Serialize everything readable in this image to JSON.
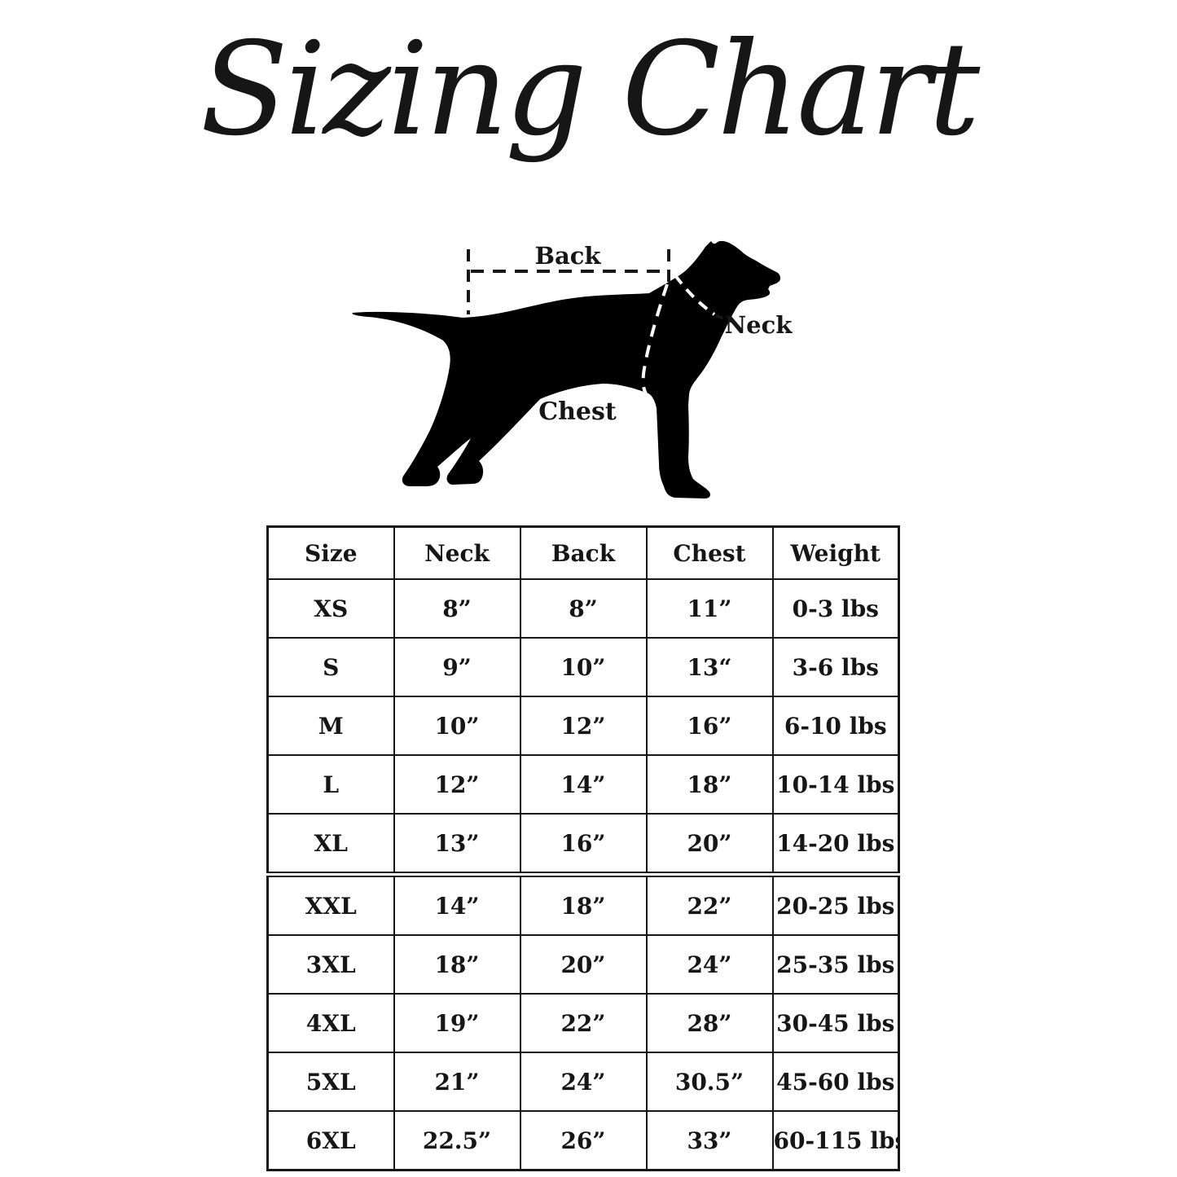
{
  "title": "Sizing Chart",
  "diagram": {
    "labels": {
      "back": "Back",
      "neck": "Neck",
      "chest": "Chest"
    },
    "silhouette_color": "#000000",
    "dash_color": "#161616"
  },
  "table": {
    "headers": [
      "Size",
      "Neck",
      "Back",
      "Chest",
      "Weight"
    ],
    "column_keys": [
      "size",
      "neck",
      "back",
      "chest",
      "weight"
    ],
    "double_border_before_row_index": 5,
    "rows": [
      {
        "size": "XS",
        "neck": "8”",
        "back": "8”",
        "chest": "11”",
        "weight": "0-3 lbs"
      },
      {
        "size": "S",
        "neck": "9”",
        "back": "10”",
        "chest": "13“",
        "weight": "3-6 lbs"
      },
      {
        "size": "M",
        "neck": "10”",
        "back": "12”",
        "chest": "16”",
        "weight": "6-10 lbs"
      },
      {
        "size": "L",
        "neck": "12”",
        "back": "14”",
        "chest": "18”",
        "weight": "10-14 lbs"
      },
      {
        "size": "XL",
        "neck": "13”",
        "back": "16”",
        "chest": "20”",
        "weight": "14-20 lbs"
      },
      {
        "size": "XXL",
        "neck": "14”",
        "back": "18”",
        "chest": "22”",
        "weight": "20-25 lbs"
      },
      {
        "size": "3XL",
        "neck": "18”",
        "back": "20”",
        "chest": "24”",
        "weight": "25-35 lbs"
      },
      {
        "size": "4XL",
        "neck": "19”",
        "back": "22”",
        "chest": "28”",
        "weight": "30-45 lbs"
      },
      {
        "size": "5XL",
        "neck": "21”",
        "back": "24”",
        "chest": "30.5”",
        "weight": "45-60 lbs"
      },
      {
        "size": "6XL",
        "neck": "22.5”",
        "back": "26”",
        "chest": "33”",
        "weight": "60-115 lbs"
      }
    ]
  }
}
